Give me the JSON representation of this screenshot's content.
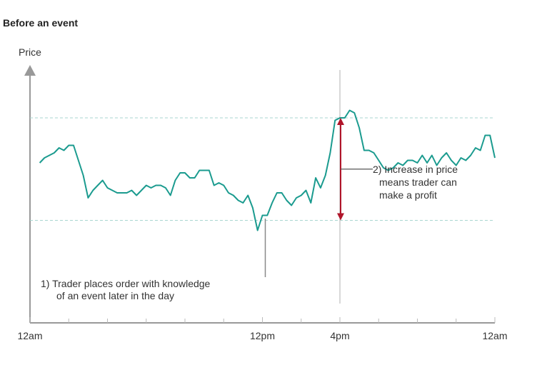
{
  "chart_data": {
    "type": "line",
    "title": "Before an event",
    "y_label": "Price",
    "x": [
      0.5,
      0.75,
      1,
      1.25,
      1.5,
      1.75,
      2,
      2.25,
      2.5,
      2.75,
      3,
      3.25,
      3.5,
      3.75,
      4,
      4.25,
      4.5,
      4.75,
      5,
      5.25,
      5.5,
      5.75,
      6,
      6.25,
      6.5,
      6.75,
      7,
      7.25,
      7.5,
      7.75,
      8,
      8.25,
      8.5,
      8.75,
      9,
      9.25,
      9.5,
      9.75,
      10,
      10.25,
      10.5,
      10.75,
      11,
      11.25,
      11.5,
      11.75,
      12,
      12.25,
      12.5,
      12.75,
      13,
      13.25,
      13.5,
      13.75,
      14,
      14.25,
      14.5,
      14.75,
      15,
      15.25,
      15.5,
      15.75,
      16,
      16.25,
      16.5,
      16.75,
      17,
      17.25,
      17.5,
      17.75,
      18,
      18.25,
      18.5,
      18.75,
      19,
      19.25,
      19.5,
      19.75,
      20,
      20.25,
      20.5,
      20.75,
      21,
      21.25,
      21.5,
      21.75,
      22,
      22.25,
      22.5,
      22.75,
      23,
      23.25,
      23.5,
      23.75,
      24
    ],
    "series": [
      {
        "name": "Price",
        "color": "#1b9b8f",
        "values": [
          64,
          66,
          67,
          68,
          70,
          69,
          71,
          71,
          65,
          59,
          50,
          53,
          55,
          57,
          54,
          53,
          52,
          52,
          52,
          53,
          51,
          53,
          55,
          54,
          55,
          55,
          54,
          51,
          57,
          60,
          60,
          58,
          58,
          61,
          61,
          61,
          55,
          56,
          55,
          52,
          51,
          49,
          48,
          51,
          46,
          37,
          43,
          43,
          48,
          52,
          52,
          49,
          47,
          50,
          51,
          53,
          48,
          58,
          54,
          59,
          68,
          81,
          82,
          82,
          85,
          84,
          78,
          69,
          69,
          68,
          65,
          62,
          61,
          62,
          64,
          63,
          65,
          65,
          64,
          67,
          64,
          67,
          63,
          66,
          68,
          65,
          63,
          66,
          65,
          67,
          70,
          69,
          75,
          75,
          66
        ]
      }
    ],
    "xlim": [
      0,
      24
    ],
    "ylim": [
      0,
      100
    ],
    "xticks": [
      {
        "value": 0,
        "label": "12am"
      },
      {
        "value": 12,
        "label": "12pm"
      },
      {
        "value": 16,
        "label": "4pm"
      },
      {
        "value": 24,
        "label": "12am"
      }
    ],
    "xminorticks": [
      2,
      4,
      6,
      8,
      10,
      14,
      18,
      20,
      22
    ],
    "reference_levels": [
      82,
      41
    ],
    "reference_color": "#a9d6d0",
    "arrow_color": "#b0152a",
    "annotations": [
      {
        "lines": [
          "1) Trader places order with knowledge",
          "of an event later in the day"
        ]
      },
      {
        "lines": [
          "2) Increase in price",
          "means trader can",
          "make a profit"
        ]
      }
    ]
  }
}
